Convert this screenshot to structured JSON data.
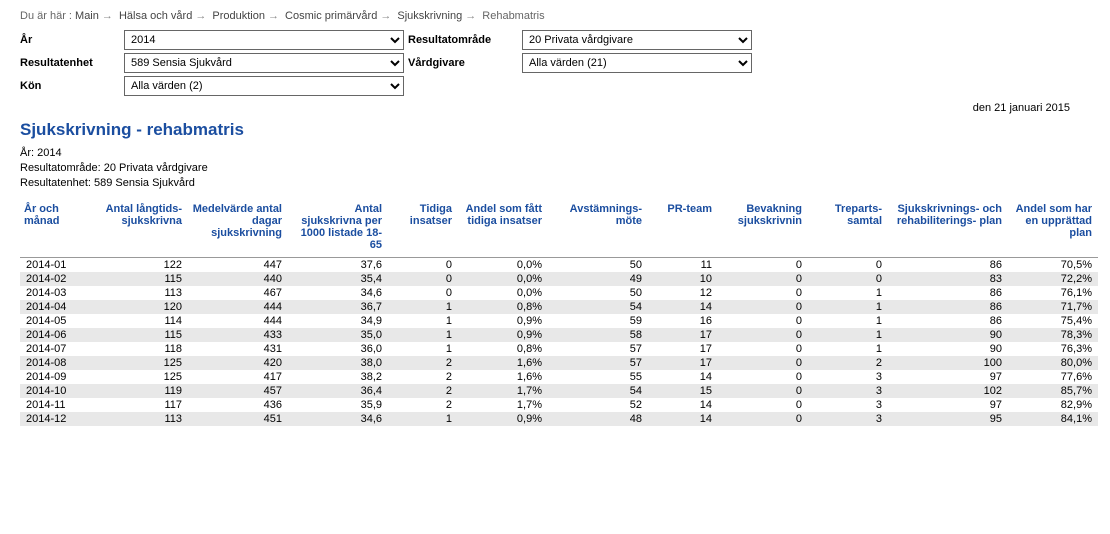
{
  "breadcrumb": {
    "prefix": "Du är här :",
    "items": [
      "Main",
      "Hälsa och vård",
      "Produktion",
      "Cosmic primärvård",
      "Sjukskrivning",
      "Rehabmatris"
    ]
  },
  "filters": {
    "ar_label": "År",
    "ar_value": "2014",
    "resultatomrade_label": "Resultatområde",
    "resultatomrade_value": "20 Privata vårdgivare",
    "resultatenhet_label": "Resultatenhet",
    "resultatenhet_value": "589 Sensia Sjukvård",
    "vardgivare_label": "Vårdgivare",
    "vardgivare_value": "Alla värden (21)",
    "kon_label": "Kön",
    "kon_value": "Alla värden (2)"
  },
  "report": {
    "date": "den 21 januari 2015",
    "title": "Sjukskrivning - rehabmatris",
    "meta_ar": "År: 2014",
    "meta_omrade": "Resultatområde: 20 Privata vårdgivare",
    "meta_enhet": "Resultatenhet: 589 Sensia Sjukvård"
  },
  "table": {
    "headers": [
      "År och månad",
      "Antal långtids- sjukskrivna",
      "Medelvärde antal dagar sjukskrivning",
      "Antal sjukskrivna per 1000 listade 18-65",
      "Tidiga insatser",
      "Andel som fått tidiga insatser",
      "Avstämnings- möte",
      "PR-team",
      "Bevakning sjukskrivnin",
      "Treparts- samtal",
      "Sjukskrivnings- och rehabiliterings- plan",
      "Andel som har en upprättad plan"
    ],
    "col_widths": [
      "78px",
      "90px",
      "100px",
      "100px",
      "70px",
      "90px",
      "100px",
      "70px",
      "90px",
      "80px",
      "120px",
      "90px"
    ],
    "rows": [
      [
        "2014-01",
        "122",
        "447",
        "37,6",
        "0",
        "0,0%",
        "50",
        "11",
        "0",
        "0",
        "86",
        "70,5%"
      ],
      [
        "2014-02",
        "115",
        "440",
        "35,4",
        "0",
        "0,0%",
        "49",
        "10",
        "0",
        "0",
        "83",
        "72,2%"
      ],
      [
        "2014-03",
        "113",
        "467",
        "34,6",
        "0",
        "0,0%",
        "50",
        "12",
        "0",
        "1",
        "86",
        "76,1%"
      ],
      [
        "2014-04",
        "120",
        "444",
        "36,7",
        "1",
        "0,8%",
        "54",
        "14",
        "0",
        "1",
        "86",
        "71,7%"
      ],
      [
        "2014-05",
        "114",
        "444",
        "34,9",
        "1",
        "0,9%",
        "59",
        "16",
        "0",
        "1",
        "86",
        "75,4%"
      ],
      [
        "2014-06",
        "115",
        "433",
        "35,0",
        "1",
        "0,9%",
        "58",
        "17",
        "0",
        "1",
        "90",
        "78,3%"
      ],
      [
        "2014-07",
        "118",
        "431",
        "36,0",
        "1",
        "0,8%",
        "57",
        "17",
        "0",
        "1",
        "90",
        "76,3%"
      ],
      [
        "2014-08",
        "125",
        "420",
        "38,0",
        "2",
        "1,6%",
        "57",
        "17",
        "0",
        "2",
        "100",
        "80,0%"
      ],
      [
        "2014-09",
        "125",
        "417",
        "38,2",
        "2",
        "1,6%",
        "55",
        "14",
        "0",
        "3",
        "97",
        "77,6%"
      ],
      [
        "2014-10",
        "119",
        "457",
        "36,4",
        "2",
        "1,7%",
        "54",
        "15",
        "0",
        "3",
        "102",
        "85,7%"
      ],
      [
        "2014-11",
        "117",
        "436",
        "35,9",
        "2",
        "1,7%",
        "52",
        "14",
        "0",
        "3",
        "97",
        "82,9%"
      ],
      [
        "2014-12",
        "113",
        "451",
        "34,6",
        "1",
        "0,9%",
        "48",
        "14",
        "0",
        "3",
        "95",
        "84,1%"
      ]
    ]
  }
}
